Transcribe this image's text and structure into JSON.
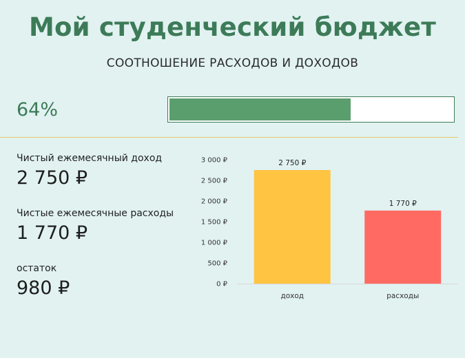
{
  "title": "Мой студенческий бюджет",
  "subtitle": "СООТНОШЕНИЕ РАСХОДОВ И ДОХОДОВ",
  "ratio": {
    "label": "64%",
    "fraction": 0.64
  },
  "metrics": [
    {
      "label": "Чистый ежемесячный доход",
      "value": "2 750 ₽"
    },
    {
      "label": "Чистые ежемесячные расходы",
      "value": "1 770 ₽"
    },
    {
      "label": "остаток",
      "value": "980 ₽"
    }
  ],
  "colors": {
    "accent": "#3d7b58",
    "progress": "#5a9e6d",
    "income_bar": "#ffc442",
    "expense_bar": "#ff6b63",
    "background": "#e1f2f1"
  },
  "chart_data": {
    "type": "bar",
    "categories": [
      "доход",
      "расходы"
    ],
    "values": [
      2750,
      1770
    ],
    "data_labels": [
      "2 750 ₽",
      "1 770 ₽"
    ],
    "ylim": [
      0,
      3000
    ],
    "yticks": [
      0,
      500,
      1000,
      1500,
      2000,
      2500,
      3000
    ],
    "ytick_labels": [
      "0 ₽",
      "500 ₽",
      "1 000 ₽",
      "1 500 ₽",
      "2 000 ₽",
      "2 500 ₽",
      "3 000 ₽"
    ],
    "grid": false
  }
}
